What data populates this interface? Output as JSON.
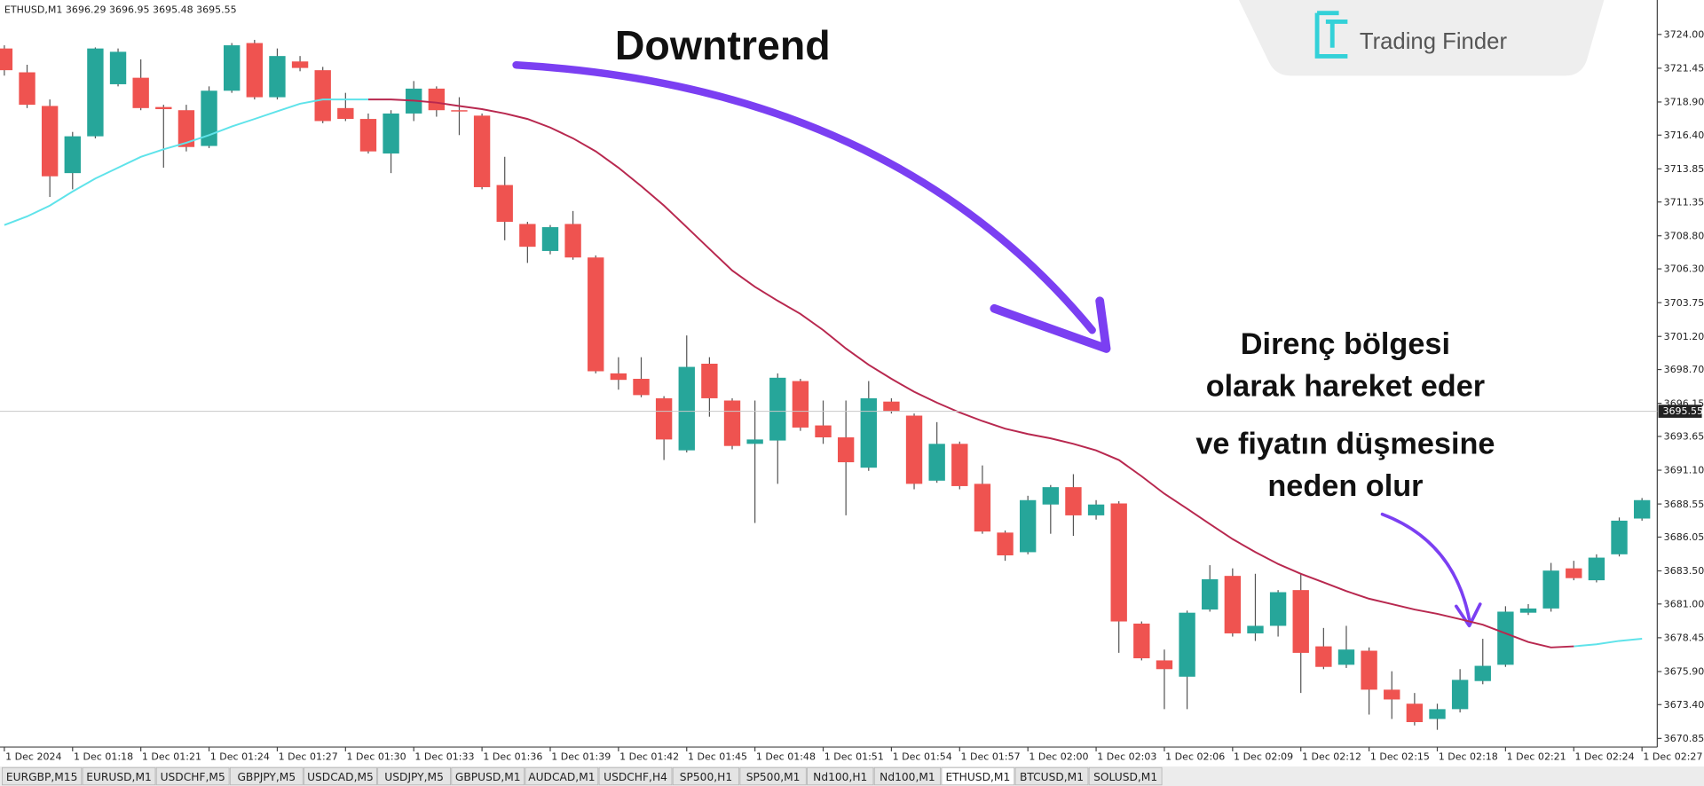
{
  "chart_data": {
    "type": "candlestick",
    "symbol_header": "ETHUSD,M1  3696.29 3696.95 3695.48 3695.55",
    "annotations": {
      "headline": "Downtrend",
      "note_lines": [
        "Direnç bölgesi",
        "olarak hareket eder",
        "ve fiyatın düşmesine",
        "neden olur"
      ]
    },
    "logo": "Trading Finder",
    "up_color": "#26a69a",
    "down_color": "#ef5350",
    "grid": false,
    "last_price": 3695.55,
    "ylim": [
      3670.2,
      3726.6
    ],
    "yticks": [
      {
        "value": 3724,
        "label": "3724.00"
      },
      3721.45,
      {
        "value": 3718.9,
        "label": "3718.90"
      },
      {
        "value": 3716.4,
        "label": "3716.40"
      },
      3713.85,
      3711.35,
      {
        "value": 3708.8,
        "label": "3708.80"
      },
      {
        "value": 3706.3,
        "label": "3706.30"
      },
      3703.75,
      {
        "value": 3701.2,
        "label": "3701.20"
      },
      {
        "value": 3698.7,
        "label": "3698.70"
      },
      3696.15,
      3693.65,
      {
        "value": 3691.1,
        "label": "3691.10"
      },
      3688.55,
      3686.05,
      {
        "value": 3683.5,
        "label": "3683.50"
      },
      {
        "value": 3681,
        "label": "3681.00"
      },
      3678.45,
      {
        "value": 3675.9,
        "label": "3675.90"
      },
      {
        "value": 3673.4,
        "label": "3673.40"
      },
      3670.85
    ],
    "categories": [
      "1 Dec 2024",
      null,
      null,
      "1 Dec 01:18",
      null,
      null,
      "1 Dec 01:21",
      null,
      null,
      "1 Dec 01:24",
      null,
      null,
      "1 Dec 01:27",
      null,
      null,
      "1 Dec 01:30",
      null,
      null,
      "1 Dec 01:33",
      null,
      null,
      "1 Dec 01:36",
      null,
      null,
      "1 Dec 01:39",
      null,
      null,
      "1 Dec 01:42",
      null,
      null,
      "1 Dec 01:45",
      null,
      null,
      "1 Dec 01:48",
      null,
      null,
      "1 Dec 01:51",
      null,
      null,
      "1 Dec 01:54",
      null,
      null,
      "1 Dec 01:57",
      null,
      null,
      "1 Dec 02:00",
      null,
      null,
      "1 Dec 02:03",
      null,
      null,
      "1 Dec 02:06",
      null,
      null,
      "1 Dec 02:09",
      null,
      null,
      "1 Dec 02:12",
      null,
      null,
      "1 Dec 02:15",
      null,
      null,
      "1 Dec 02:18",
      null,
      null,
      "1 Dec 02:21",
      null,
      null,
      "1 Dec 02:24",
      null,
      null,
      "1 Dec 02:27"
    ],
    "open": [
      3722.94,
      3721.14,
      3718.6,
      3713.53,
      3716.31,
      3720.24,
      3720.73,
      3718.52,
      3718.28,
      3715.58,
      3719.75,
      3723.35,
      3719.26,
      3721.96,
      3721.3,
      3718.44,
      3717.62,
      3715.01,
      3718.03,
      3719.91,
      3718.28,
      3717.87,
      3712.63,
      3709.69,
      3707.65,
      3709.69,
      3707.16,
      3698.41,
      3698.0,
      3696.53,
      3692.6,
      3699.14,
      3696.36,
      3693.09,
      3693.34,
      3697.83,
      3694.48,
      3693.58,
      3691.29,
      3696.28,
      3695.22,
      3690.31,
      3693.09,
      3690.07,
      3686.39,
      3684.91,
      3688.51,
      3689.82,
      3687.69,
      3688.59,
      3679.52,
      3676.74,
      3675.51,
      3680.58,
      3683.12,
      3678.78,
      3679.35,
      3682.05,
      3677.8,
      3676.41,
      3677.47,
      3674.53,
      3673.47,
      3672.32,
      3673.06,
      3675.18,
      3676.41,
      3680.34,
      3680.66,
      3683.69,
      3682.79,
      3684.75,
      3687.45
    ],
    "high": [
      3723.18,
      3721.71,
      3719.09,
      3716.64,
      3723.02,
      3722.94,
      3722.12,
      3718.69,
      3718.69,
      3720.08,
      3723.35,
      3723.59,
      3722.94,
      3722.37,
      3721.55,
      3719.59,
      3718.03,
      3718.28,
      3720.48,
      3720.08,
      3719.26,
      3718.03,
      3714.76,
      3709.85,
      3709.61,
      3710.67,
      3707.32,
      3699.63,
      3699.63,
      3696.69,
      3701.27,
      3699.63,
      3696.53,
      3696.36,
      3698.41,
      3698.0,
      3696.36,
      3696.36,
      3697.83,
      3696.53,
      3695.38,
      3694.73,
      3693.26,
      3691.46,
      3686.55,
      3689.17,
      3689.98,
      3690.8,
      3688.84,
      3688.76,
      3679.68,
      3677.56,
      3680.5,
      3683.93,
      3683.69,
      3683.28,
      3682.05,
      3683.28,
      3679.19,
      3679.35,
      3677.72,
      3675.92,
      3674.28,
      3673.47,
      3676.08,
      3678.37,
      3680.83,
      3680.99,
      3684.1,
      3684.26,
      3684.75,
      3687.53,
      3689.0
    ],
    "low": [
      3720.89,
      3718.44,
      3711.73,
      3712.31,
      3716.15,
      3720.08,
      3718.28,
      3713.94,
      3715.17,
      3715.42,
      3719.59,
      3719.09,
      3719.09,
      3721.22,
      3717.3,
      3717.46,
      3715.01,
      3713.53,
      3717.46,
      3717.79,
      3716.4,
      3712.31,
      3708.46,
      3706.75,
      3707.4,
      3706.99,
      3698.41,
      3697.18,
      3696.61,
      3691.87,
      3692.44,
      3695.14,
      3692.68,
      3687.12,
      3690.07,
      3694.07,
      3693.09,
      3687.69,
      3691.05,
      3695.38,
      3689.66,
      3690.15,
      3689.66,
      3686.3,
      3684.26,
      3684.75,
      3686.3,
      3686.14,
      3687.37,
      3677.31,
      3676.74,
      3673.06,
      3673.06,
      3680.42,
      3678.54,
      3678.21,
      3678.54,
      3674.28,
      3676.08,
      3676.17,
      3672.65,
      3672.32,
      3671.83,
      3671.5,
      3672.81,
      3674.94,
      3676.25,
      3680.17,
      3680.42,
      3682.79,
      3682.63,
      3684.59,
      3687.29
    ],
    "close": [
      3721.3,
      3718.69,
      3713.29,
      3716.31,
      3722.94,
      3722.69,
      3718.44,
      3718.36,
      3715.5,
      3719.75,
      3723.18,
      3719.26,
      3722.37,
      3721.47,
      3717.46,
      3717.62,
      3715.17,
      3718.03,
      3719.91,
      3718.28,
      3718.2,
      3712.47,
      3709.85,
      3707.97,
      3709.45,
      3707.16,
      3698.57,
      3697.92,
      3696.77,
      3693.42,
      3698.9,
      3696.53,
      3692.93,
      3693.42,
      3698.08,
      3694.32,
      3693.58,
      3691.7,
      3696.53,
      3695.54,
      3690.07,
      3693.09,
      3689.9,
      3686.47,
      3684.67,
      3688.84,
      3689.82,
      3687.69,
      3688.51,
      3679.68,
      3676.9,
      3676.08,
      3680.34,
      3682.87,
      3678.78,
      3679.35,
      3681.89,
      3677.31,
      3676.25,
      3677.56,
      3674.53,
      3673.79,
      3672.08,
      3673.06,
      3675.27,
      3676.33,
      3680.42,
      3680.66,
      3683.52,
      3682.95,
      3684.5,
      3687.29,
      3688.84
    ],
    "series": [
      {
        "color": "#5fe3ea",
        "values": [
          3709.61,
          3710.26,
          3711.08,
          3712.14,
          3713.12,
          3713.94,
          3714.76,
          3715.33,
          3715.82,
          3716.4,
          3717.05,
          3717.62,
          3718.2,
          3718.77,
          3719.09,
          3719.09,
          3719.09,
          null,
          null,
          null,
          null,
          null,
          null,
          null,
          null,
          null,
          null,
          null,
          null,
          null,
          null,
          null,
          null,
          null,
          null,
          null,
          null,
          null,
          null,
          null,
          null,
          null,
          null,
          null,
          null,
          null,
          null,
          null,
          null,
          null,
          null,
          null,
          null,
          null,
          null,
          null,
          null,
          null,
          null,
          null,
          null,
          null,
          null,
          null,
          null,
          null,
          null,
          null,
          null,
          3677.8,
          3677.96,
          3678.21,
          3678.37
        ]
      },
      {
        "color": "#b8284f",
        "values": [
          null,
          null,
          null,
          null,
          null,
          null,
          null,
          null,
          null,
          null,
          null,
          null,
          null,
          null,
          null,
          null,
          3719.09,
          3719.09,
          3719.01,
          3718.85,
          3718.6,
          3718.36,
          3718.03,
          3717.62,
          3716.97,
          3716.15,
          3715.17,
          3713.94,
          3712.55,
          3711.08,
          3709.45,
          3707.81,
          3706.17,
          3704.95,
          3703.89,
          3702.9,
          3701.68,
          3700.29,
          3699.06,
          3698.0,
          3697.02,
          3696.2,
          3695.46,
          3694.81,
          3694.24,
          3693.83,
          3693.5,
          3693.09,
          3692.6,
          3691.87,
          3690.64,
          3689.33,
          3688.19,
          3687.04,
          3685.9,
          3684.91,
          3684.02,
          3683.28,
          3682.63,
          3681.97,
          3681.4,
          3680.99,
          3680.58,
          3680.25,
          3679.85,
          3679.44,
          3678.78,
          3678.13,
          3677.72,
          3677.8,
          null,
          null,
          null
        ]
      }
    ]
  },
  "tabs": [
    "EURGBP,M15",
    "EURUSD,M1",
    "USDCHF,M5",
    "GBPJPY,M5",
    "USDCAD,M5",
    "USDJPY,M5",
    "GBPUSD,M1",
    "AUDCAD,M1",
    "USDCHF,H4",
    "SP500,H1",
    "SP500,M1",
    "Nd100,H1",
    "Nd100,M1",
    "ETHUSD,M1",
    "BTCUSD,M1",
    "SOLUSD,M1"
  ],
  "active_tab": 13
}
